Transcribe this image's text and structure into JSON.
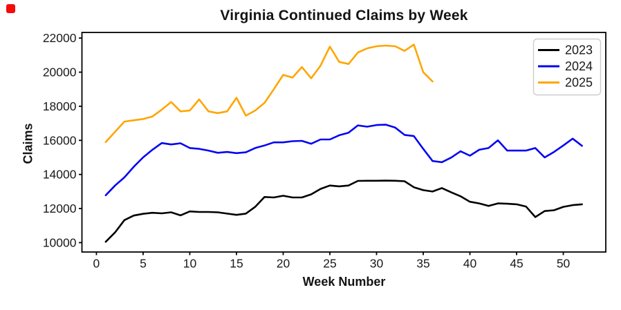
{
  "page": {
    "background": "#ffffff",
    "indicator_color": "#f40b0b"
  },
  "chart_data": {
    "type": "line",
    "title": "Virginia Continued Claims by Week",
    "xlabel": "Week Number",
    "ylabel": "Claims",
    "xlim": [
      -1.55,
      54.55
    ],
    "ylim": [
      9450,
      22330
    ],
    "x_ticks": [
      0,
      5,
      10,
      15,
      20,
      25,
      30,
      35,
      40,
      45,
      50
    ],
    "y_ticks": [
      10000,
      12000,
      14000,
      16000,
      18000,
      20000,
      22000
    ],
    "grid": false,
    "legend_position": "upper right",
    "x_start_week": 1,
    "series": [
      {
        "name": "2023",
        "color": "#000000",
        "values": [
          10050,
          10600,
          11320,
          11590,
          11690,
          11750,
          11720,
          11780,
          11600,
          11830,
          11800,
          11800,
          11780,
          11700,
          11630,
          11700,
          12100,
          12680,
          12650,
          12750,
          12650,
          12650,
          12830,
          13150,
          13350,
          13300,
          13350,
          13620,
          13630,
          13630,
          13640,
          13630,
          13600,
          13250,
          13080,
          13000,
          13200,
          12950,
          12720,
          12400,
          12300,
          12150,
          12300,
          12280,
          12250,
          12120,
          11500,
          11850,
          11900,
          12100,
          12200,
          12250
        ]
      },
      {
        "name": "2024",
        "color": "#0404f2",
        "values": [
          12780,
          13350,
          13830,
          14450,
          15000,
          15450,
          15840,
          15760,
          15830,
          15550,
          15500,
          15400,
          15270,
          15320,
          15250,
          15300,
          15550,
          15700,
          15880,
          15880,
          15950,
          15970,
          15800,
          16050,
          16050,
          16300,
          16450,
          16880,
          16800,
          16900,
          16920,
          16750,
          16320,
          16250,
          15500,
          14790,
          14720,
          14990,
          15360,
          15100,
          15450,
          15550,
          16000,
          15400,
          15400,
          15400,
          15550,
          15000,
          15320,
          15700,
          16100,
          15680
        ]
      },
      {
        "name": "2025",
        "color": "#ffa500",
        "values": [
          15900,
          16500,
          17100,
          17180,
          17250,
          17400,
          17800,
          18250,
          17700,
          17750,
          18400,
          17700,
          17600,
          17700,
          18500,
          17450,
          17750,
          18200,
          19000,
          19840,
          19680,
          20300,
          19640,
          20380,
          21500,
          20600,
          20480,
          21150,
          21400,
          21520,
          21560,
          21520,
          21250,
          21620,
          20000,
          19450
        ]
      }
    ]
  }
}
